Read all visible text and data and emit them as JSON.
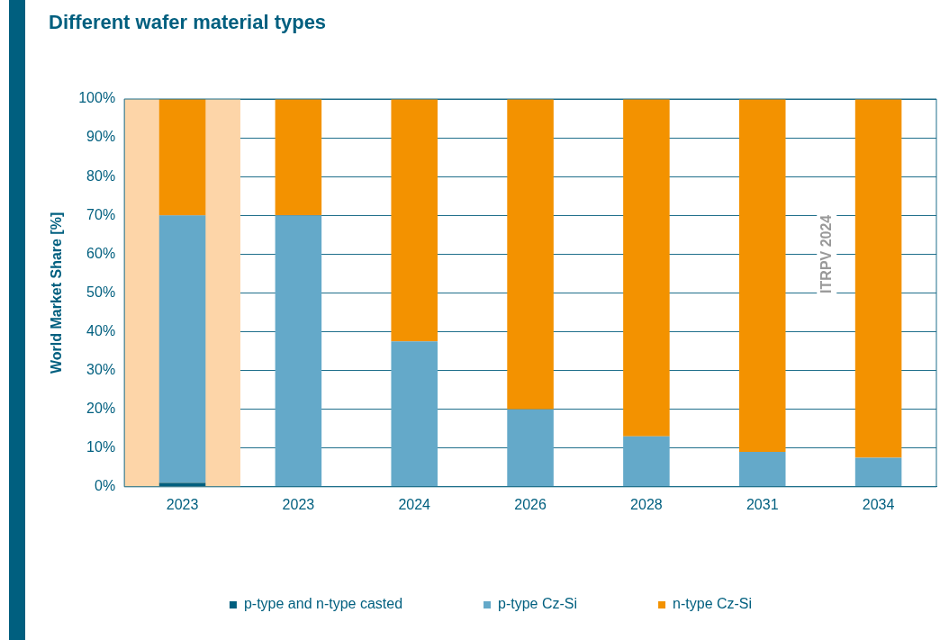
{
  "chart_data": {
    "type": "bar",
    "title": "Different wafer material types",
    "ylabel": "World Market Share [%]",
    "categories": [
      "2023",
      "2023",
      "2024",
      "2026",
      "2028",
      "2031",
      "2034"
    ],
    "stacked": true,
    "series": [
      {
        "name": "p-type and n-type casted",
        "color": "#005f7f",
        "values": [
          1,
          0,
          0,
          0,
          0,
          0,
          0
        ]
      },
      {
        "name": "p-type Cz-Si",
        "color": "#64a9c9",
        "values": [
          69,
          70,
          37.5,
          20,
          13,
          9,
          7.5
        ]
      },
      {
        "name": "n-type Cz-Si",
        "color": "#f39200",
        "values": [
          30,
          30,
          62.5,
          80,
          87,
          91,
          92.5
        ]
      }
    ],
    "ylim": [
      0,
      100
    ],
    "yticks": [
      {
        "value": 0,
        "label": "0%"
      },
      {
        "value": 10,
        "label": "10%"
      },
      {
        "value": 20,
        "label": "20%"
      },
      {
        "value": 30,
        "label": "30%"
      },
      {
        "value": 40,
        "label": "40%"
      },
      {
        "value": 50,
        "label": "50%"
      },
      {
        "value": 60,
        "label": "60%"
      },
      {
        "value": 70,
        "label": "70%"
      },
      {
        "value": 80,
        "label": "80%"
      },
      {
        "value": 90,
        "label": "90%"
      },
      {
        "value": 100,
        "label": "100%"
      }
    ],
    "grid": "y",
    "legend": "bottom",
    "bands": [
      {
        "axis": "x",
        "from": "2023",
        "to": "2023",
        "color": "#fdd5a8"
      }
    ],
    "annotations": [
      "ITRPV 2024"
    ]
  }
}
